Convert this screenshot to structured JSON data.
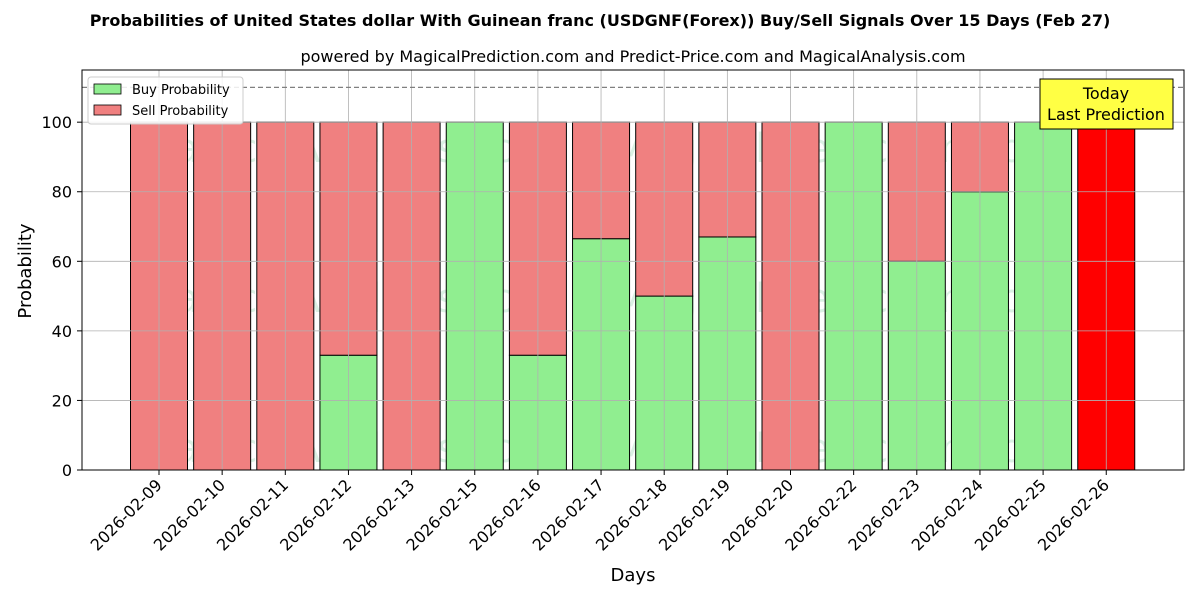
{
  "chart_data": {
    "type": "bar",
    "stacked": true,
    "title": "Probabilities of United States dollar With Guinean franc (USDGNF(Forex)) Buy/Sell Signals Over 15 Days (Feb 27)",
    "subtitle": "powered by MagicalPrediction.com and Predict-Price.com and MagicalAnalysis.com",
    "xlabel": "Days",
    "ylabel": "Probability",
    "ylim": [
      0,
      115
    ],
    "yticks": [
      0,
      20,
      40,
      60,
      80,
      100
    ],
    "grid": true,
    "legend_position": "top-left",
    "reference_line": 110,
    "categories": [
      "2026-02-09",
      "2026-02-10",
      "2026-02-11",
      "2026-02-12",
      "2026-02-13",
      "2026-02-15",
      "2026-02-16",
      "2026-02-17",
      "2026-02-18",
      "2026-02-19",
      "2026-02-20",
      "2026-02-22",
      "2026-02-23",
      "2026-02-24",
      "2026-02-25",
      "2026-02-26"
    ],
    "series": [
      {
        "name": "Buy Probability",
        "color": "#90ee90",
        "values": [
          0,
          0,
          0,
          33,
          0,
          100,
          33,
          66.5,
          50,
          67,
          0,
          100,
          60,
          80,
          100,
          0
        ]
      },
      {
        "name": "Sell Probability",
        "color": "#f08080",
        "values": [
          100,
          100,
          100,
          67,
          100,
          0,
          67,
          33.5,
          50,
          33,
          100,
          0,
          40,
          20,
          0,
          0
        ]
      }
    ],
    "highlight": {
      "index": 15,
      "value": 100,
      "color": "#ff0000"
    },
    "annotation": {
      "lines": [
        "Today",
        "Last Prediction"
      ],
      "background": "#ffff44"
    },
    "watermarks": [
      "MagicalAnalysis.com",
      "MagicalPrediction.com"
    ]
  }
}
